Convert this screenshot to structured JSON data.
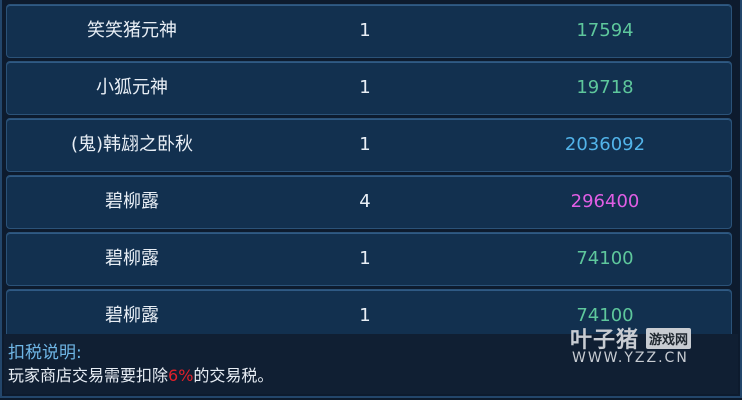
{
  "rows": [
    {
      "name": "笑笑猪元神",
      "qty": "1",
      "price": "17594",
      "price_color": "#5ec79c"
    },
    {
      "name": "小狐元神",
      "qty": "1",
      "price": "19718",
      "price_color": "#5ec79c"
    },
    {
      "name": "(鬼)韩翃之卧秋",
      "qty": "1",
      "price": "2036092",
      "price_color": "#52b4ea"
    },
    {
      "name": "碧柳露",
      "qty": "4",
      "price": "296400",
      "price_color": "#e05ee4"
    },
    {
      "name": "碧柳露",
      "qty": "1",
      "price": "74100",
      "price_color": "#5ec79c"
    },
    {
      "name": "碧柳露",
      "qty": "1",
      "price": "74100",
      "price_color": "#5ec79c"
    }
  ],
  "footer": {
    "title": "扣税说明:",
    "text_before": "玩家商店交易需要扣除",
    "rate": "6%",
    "text_after": "的交易税。"
  },
  "watermark": {
    "brand": "叶子猪",
    "tag": "游戏网",
    "url": "WWW.YZZ.CN"
  }
}
